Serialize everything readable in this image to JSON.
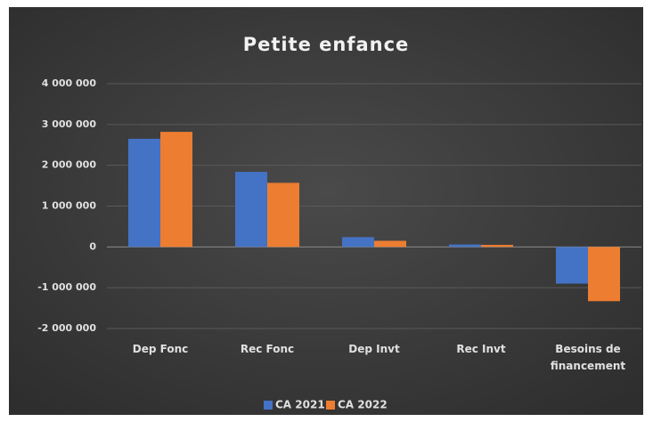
{
  "chart_data": {
    "type": "bar",
    "title": "Petite enfance",
    "categories": [
      "Dep Fonc",
      "Rec Fonc",
      "Dep Invt",
      "Rec Invt",
      "Besoins de financement"
    ],
    "series": [
      {
        "name": "CA 2021",
        "color": "#4472c4",
        "values": [
          2650000,
          1840000,
          240000,
          60000,
          -900000
        ]
      },
      {
        "name": "CA 2022",
        "color": "#ed7d31",
        "values": [
          2820000,
          1570000,
          150000,
          50000,
          -1330000
        ]
      }
    ],
    "ylim": [
      -2000000,
      4000000
    ],
    "yticks": [
      {
        "value": -2000000,
        "label": "-2 000 000"
      },
      {
        "value": -1000000,
        "label": "-1 000 000"
      },
      0,
      {
        "value": 1000000,
        "label": "1 000 000"
      },
      {
        "value": 2000000,
        "label": "2 000 000"
      },
      {
        "value": 3000000,
        "label": "3 000 000"
      },
      {
        "value": 4000000,
        "label": "4 000 000"
      }
    ],
    "grid": true,
    "legend": "bottom"
  }
}
